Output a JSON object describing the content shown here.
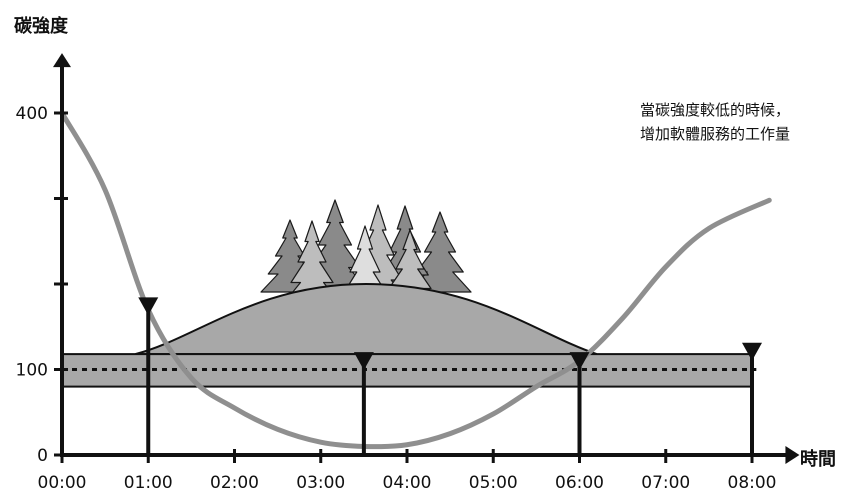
{
  "chart_data": {
    "type": "line",
    "ylabel": "碳強度",
    "xlabel": "時間",
    "x_ticks": [
      "00:00",
      "01:00",
      "02:00",
      "03:00",
      "04:00",
      "05:00",
      "06:00",
      "07:00",
      "08:00"
    ],
    "y_ticks": [
      {
        "value": 0,
        "label": "0"
      },
      {
        "value": 100,
        "label": "100"
      },
      {
        "value": 400,
        "label": "400"
      }
    ],
    "ylim": [
      0,
      470
    ],
    "xlim": [
      0,
      8.55
    ],
    "grid": false,
    "series": [
      {
        "color": "#8f8f8f",
        "points": [
          [
            0,
            400
          ],
          [
            0.5,
            310
          ],
          [
            1,
            170
          ],
          [
            1.5,
            90
          ],
          [
            2,
            55
          ],
          [
            2.5,
            30
          ],
          [
            3,
            15
          ],
          [
            3.5,
            10
          ],
          [
            4,
            12
          ],
          [
            4.5,
            25
          ],
          [
            5,
            48
          ],
          [
            5.5,
            80
          ],
          [
            6,
            110
          ],
          [
            6.5,
            160
          ],
          [
            7,
            220
          ],
          [
            7.5,
            265
          ],
          [
            8.2,
            298
          ]
        ]
      }
    ],
    "band": {
      "low": 80,
      "high": 118,
      "color": "#a8a8a8"
    },
    "dashed_level": 100,
    "dome": {
      "start": 0.85,
      "end": 6.2,
      "peak": 200,
      "color": "#a8a8a8"
    },
    "markers": [
      {
        "x": 1,
        "value": 182
      },
      {
        "x": 3.5,
        "value": 118
      },
      {
        "x": 6,
        "value": 118
      },
      {
        "x": 8,
        "value": 129
      }
    ],
    "annotation": [
      "當碳強度較低的時候，",
      "增加軟體服務的工作量"
    ]
  }
}
